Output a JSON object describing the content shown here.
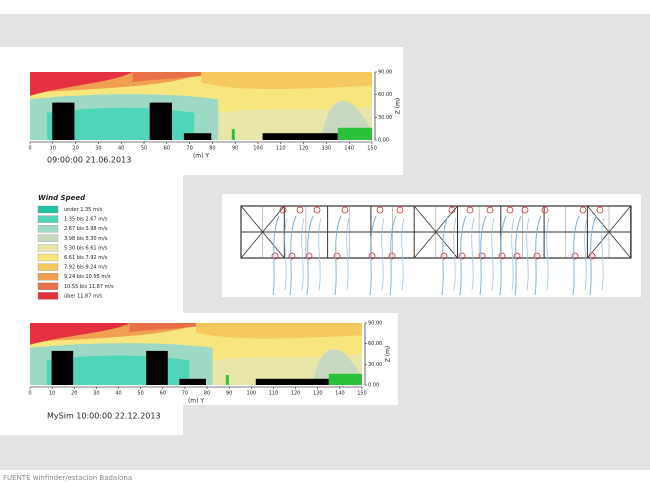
{
  "panels": [
    {
      "timestamp": "09:00:00 21.06.2013",
      "x_label": "(m) Y",
      "z_label": "Z (m)",
      "x_ticks": [
        "0",
        "10",
        "20",
        "30",
        "40",
        "50",
        "60",
        "70",
        "80",
        "90",
        "100",
        "110",
        "120",
        "130",
        "140",
        "150"
      ],
      "z_ticks": [
        "90.00",
        "60.00",
        "30.00",
        "0.00"
      ]
    },
    {
      "timestamp": "MySim 10:00:00 22.12.2013",
      "x_label": "(m) Y",
      "z_label": "Z (m)",
      "x_ticks": [
        "0",
        "10",
        "20",
        "30",
        "40",
        "50",
        "60",
        "70",
        "80",
        "90",
        "100",
        "110",
        "120",
        "130",
        "140",
        "150"
      ],
      "z_ticks": [
        "90.00",
        "60.00",
        "30.00",
        "0.00"
      ]
    }
  ],
  "legend": {
    "title": "Wind Speed",
    "items": [
      {
        "label": "under 1.35 m/s",
        "color": "#21c1a3"
      },
      {
        "label": "1.35 bis 2.67 m/s",
        "color": "#4fd6b8"
      },
      {
        "label": "2.67 bis 3.98 m/s",
        "color": "#9dd9c5"
      },
      {
        "label": "3.98 bis 5.30 m/s",
        "color": "#c8d8c0"
      },
      {
        "label": "5.30 bis 6.61 m/s",
        "color": "#e8e6a8"
      },
      {
        "label": "6.61 bis 7.92 m/s",
        "color": "#f7e67e"
      },
      {
        "label": "7.92 bis 9.24 m/s",
        "color": "#f5c860"
      },
      {
        "label": "9.24 bis 10.55 m/s",
        "color": "#f0a050"
      },
      {
        "label": "10.55 bis 11.87 m/s",
        "color": "#ea7048"
      },
      {
        "label": "über 11.87 m/s",
        "color": "#e53040"
      }
    ]
  },
  "footer": "FUENTE winfinder/estacion Badalona"
}
